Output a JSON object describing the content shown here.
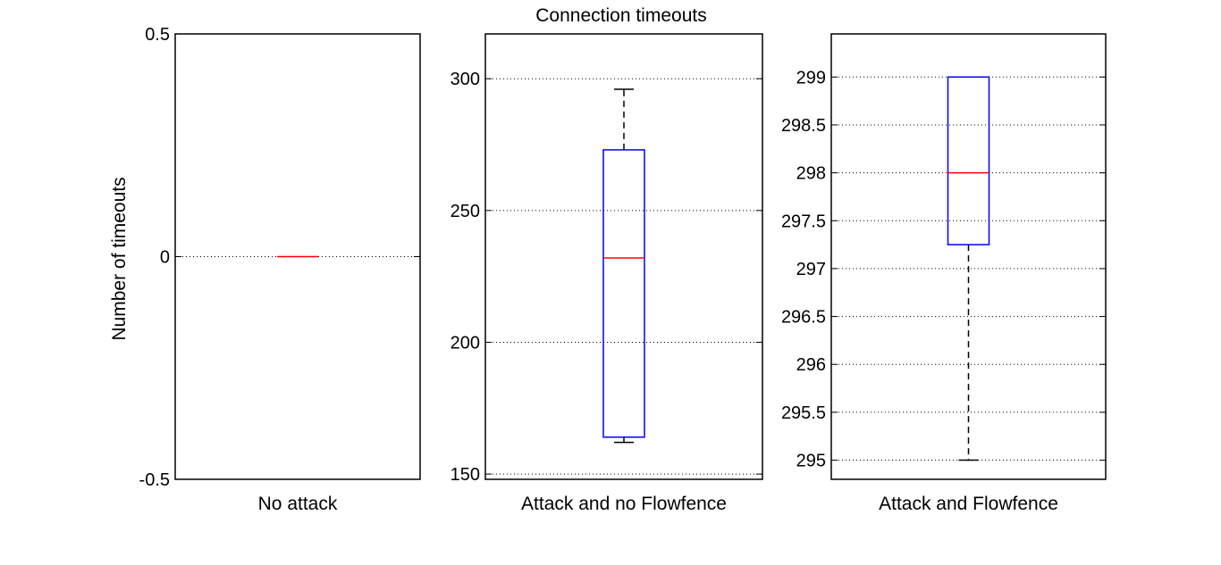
{
  "chart_data": {
    "type": "box",
    "title": "Connection timeouts",
    "ylabel": "Number of timeouts",
    "colors": {
      "box": "#0000ff",
      "median": "#ff0000",
      "whisker": "#000000",
      "grid": "#000000"
    },
    "grid": "y-dotted",
    "panels": [
      {
        "xlabel": "No attack",
        "ylim": [
          -0.5,
          0.5
        ],
        "yticks": [
          -0.5,
          0,
          0.5
        ],
        "ytick_labels": [
          "-0.5",
          "0",
          "0.5"
        ],
        "gridlines": [
          0
        ],
        "box": {
          "min": 0,
          "q1": 0,
          "median": 0,
          "q3": 0,
          "max": 0
        }
      },
      {
        "xlabel": "Attack and no Flowfence",
        "ylim": [
          148,
          317
        ],
        "yticks": [
          150,
          200,
          250,
          300
        ],
        "ytick_labels": [
          "150",
          "200",
          "250",
          "300"
        ],
        "gridlines": [
          150,
          200,
          250,
          300
        ],
        "box": {
          "min": 162,
          "q1": 164,
          "median": 232,
          "q3": 273,
          "max": 296
        }
      },
      {
        "xlabel": "Attack and Flowfence",
        "ylim": [
          294.8,
          299.45
        ],
        "yticks": [
          295,
          295.5,
          296,
          296.5,
          297,
          297.5,
          298,
          298.5,
          299
        ],
        "ytick_labels": [
          "295",
          "295.5",
          "296",
          "296.5",
          "297",
          "297.5",
          "298",
          "298.5",
          "299"
        ],
        "gridlines": [
          295,
          295.5,
          296,
          296.5,
          297,
          297.5,
          298,
          298.5,
          299
        ],
        "box": {
          "min": 295,
          "q1": 297.25,
          "median": 298,
          "q3": 299,
          "max": 299
        }
      }
    ]
  }
}
